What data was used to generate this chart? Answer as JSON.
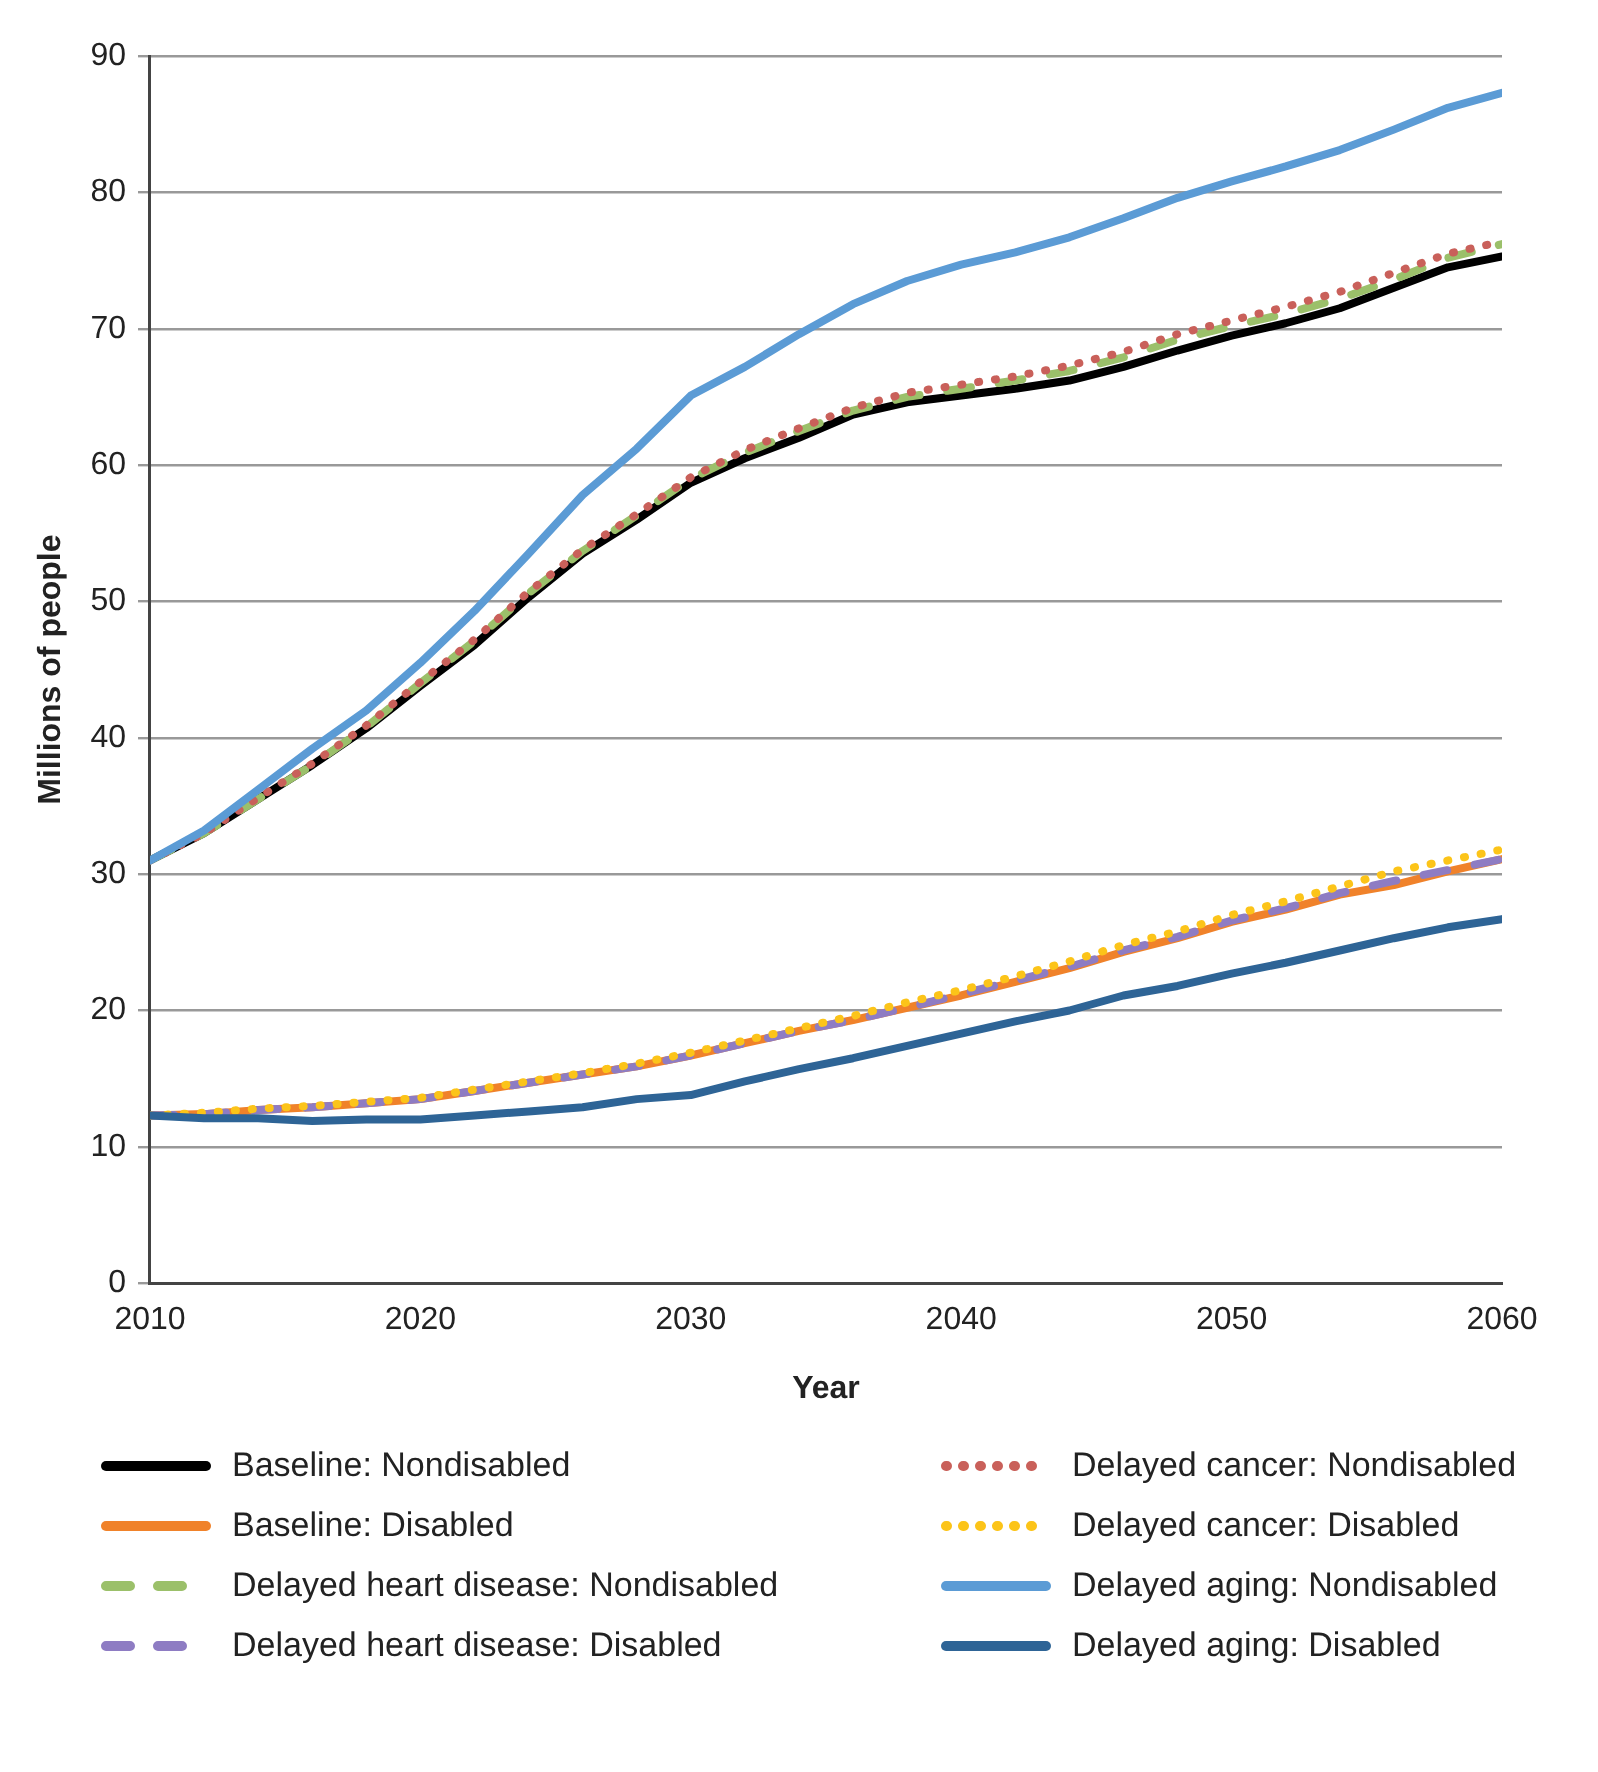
{
  "chart_data": {
    "type": "line",
    "xlabel": "Year",
    "ylabel": "Millions of people",
    "x": [
      2010,
      2012,
      2014,
      2016,
      2018,
      2020,
      2022,
      2024,
      2026,
      2028,
      2030,
      2032,
      2034,
      2036,
      2038,
      2040,
      2042,
      2044,
      2046,
      2048,
      2050,
      2052,
      2054,
      2056,
      2058,
      2060
    ],
    "xlim": [
      2010,
      2060
    ],
    "xticks": [
      2010,
      2020,
      2030,
      2040,
      2050,
      2060
    ],
    "ylim": [
      0,
      90
    ],
    "yticks": [
      0,
      10,
      20,
      30,
      40,
      50,
      60,
      70,
      80,
      90
    ],
    "grid": "y",
    "legend": "bottom",
    "marker": "none",
    "series": [
      {
        "name": "Baseline: Nondisabled",
        "color": "#000000",
        "line_style": "solid",
        "values": [
          31,
          33,
          35.5,
          38,
          40.7,
          43.8,
          46.8,
          50.3,
          53.5,
          56,
          58.7,
          60.5,
          62,
          63.7,
          64.6,
          65.1,
          65.6,
          66.2,
          67.2,
          68.4,
          69.5,
          70.4,
          71.5,
          73,
          74.5,
          75.3
        ]
      },
      {
        "name": "Baseline: Disabled",
        "color": "#f0822a",
        "line_style": "solid",
        "values": [
          12.3,
          12.4,
          12.7,
          12.9,
          13.2,
          13.5,
          14.1,
          14.7,
          15.3,
          15.9,
          16.7,
          17.6,
          18.5,
          19.3,
          20.2,
          21.1,
          22.1,
          23.1,
          24.3,
          25.3,
          26.5,
          27.4,
          28.5,
          29.2,
          30.2,
          31.1
        ]
      },
      {
        "name": "Delayed heart disease: Nondisabled",
        "color": "#9bc06a",
        "line_style": "dashed",
        "values": [
          31,
          33,
          35.5,
          38,
          40.8,
          44,
          47.1,
          50.6,
          53.7,
          56.3,
          59,
          60.9,
          62.5,
          64,
          65,
          65.6,
          66.2,
          66.9,
          67.9,
          69.2,
          70.2,
          71.1,
          72.2,
          73.6,
          75.2,
          76.2
        ]
      },
      {
        "name": "Delayed heart disease: Disabled",
        "color": "#8e7cc3",
        "line_style": "dashed",
        "values": [
          12.3,
          12.4,
          12.7,
          12.9,
          13.2,
          13.5,
          14.1,
          14.7,
          15.3,
          15.9,
          16.7,
          17.6,
          18.5,
          19.3,
          20.2,
          21.2,
          22.2,
          23.2,
          24.4,
          25.4,
          26.6,
          27.5,
          28.6,
          29.5,
          30.3,
          31.1
        ]
      },
      {
        "name": "Delayed cancer: Nondisabled",
        "color": "#c9605a",
        "line_style": "dotted",
        "values": [
          31,
          33,
          35.6,
          38.1,
          40.9,
          44.1,
          47.2,
          50.7,
          53.8,
          56.4,
          59.1,
          61.1,
          62.7,
          64.2,
          65.3,
          65.9,
          66.5,
          67.3,
          68.3,
          69.6,
          70.6,
          71.6,
          72.7,
          74.1,
          75.5,
          76.4
        ]
      },
      {
        "name": "Delayed cancer: Disabled",
        "color": "#fcc419",
        "line_style": "dotted",
        "values": [
          12.3,
          12.5,
          12.8,
          13,
          13.3,
          13.6,
          14.2,
          14.8,
          15.4,
          16.1,
          16.9,
          17.8,
          18.7,
          19.6,
          20.6,
          21.5,
          22.5,
          23.6,
          24.8,
          25.8,
          27,
          28,
          29.1,
          30.2,
          31,
          31.8
        ]
      },
      {
        "name": "Delayed aging: Nondisabled",
        "color": "#5b9bd5",
        "line_style": "solid",
        "values": [
          31,
          33.2,
          36.2,
          39.2,
          42,
          45.5,
          49.3,
          53.5,
          57.8,
          61.2,
          65.1,
          67.2,
          69.6,
          71.8,
          73.5,
          74.7,
          75.6,
          76.7,
          78.1,
          79.6,
          80.8,
          81.9,
          83.1,
          84.6,
          86.2,
          87.3
        ]
      },
      {
        "name": "Delayed aging: Disabled",
        "color": "#2e6496",
        "line_style": "solid",
        "values": [
          12.3,
          12.1,
          12.1,
          11.9,
          12,
          12,
          12.3,
          12.6,
          12.9,
          13.5,
          13.8,
          14.8,
          15.7,
          16.5,
          17.4,
          18.3,
          19.2,
          20,
          21.1,
          21.8,
          22.7,
          23.5,
          24.4,
          25.3,
          26.1,
          26.7
        ]
      }
    ]
  }
}
